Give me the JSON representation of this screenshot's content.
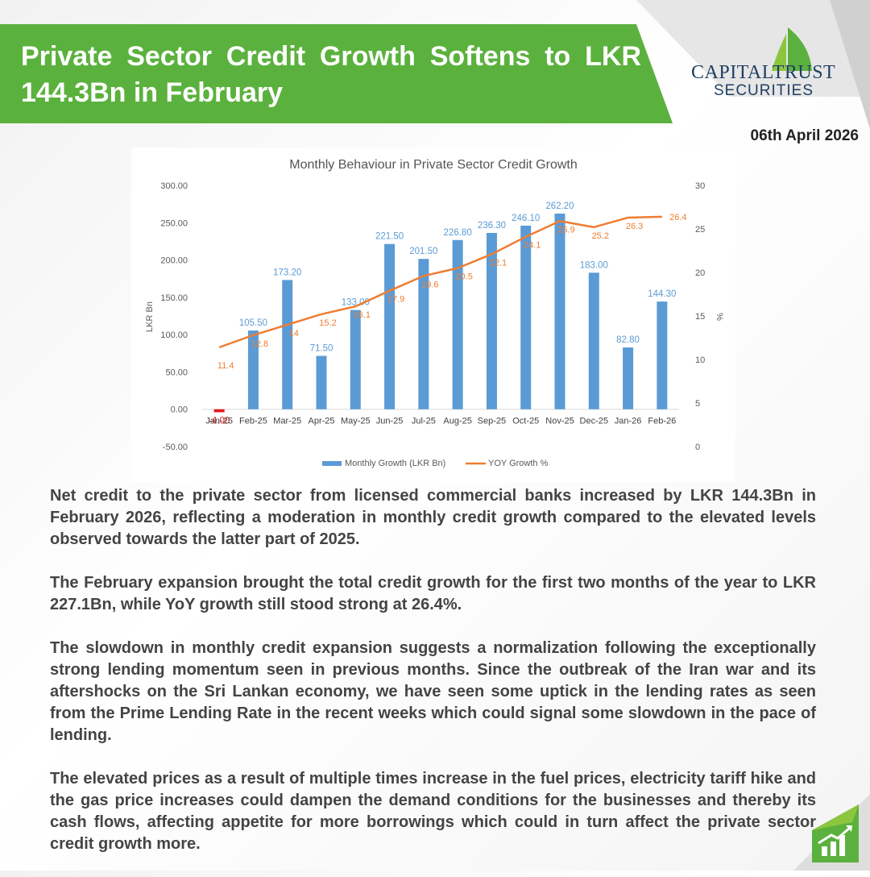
{
  "header": {
    "title": "Private Sector Credit Growth Softens to LKR 144.3Bn in February",
    "date": "06th April 2026"
  },
  "logo": {
    "name": "CAPITALTRUST",
    "sub": "SECURITIES"
  },
  "colors": {
    "brand_green": "#5bb13d",
    "bar": "#5b9bd5",
    "line": "#ed7d31",
    "negative_bar": "#e31b1b",
    "logo_navy": "#1f3f63"
  },
  "chart_data": {
    "type": "bar",
    "title": "Monthly Behaviour in Private Sector Credit Growth",
    "ylabel": "LKR Bn",
    "y2label": "%",
    "ylim": [
      -50,
      300
    ],
    "y2lim": [
      0,
      30
    ],
    "yticks": [
      "300.00",
      "250.00",
      "200.00",
      "150.00",
      "100.00",
      "50.00",
      "0.00",
      "-50.00"
    ],
    "y2ticks": [
      "30",
      "25",
      "20",
      "15",
      "10",
      "5",
      "0"
    ],
    "categories": [
      "Jan-25",
      "Feb-25",
      "Mar-25",
      "Apr-25",
      "May-25",
      "Jun-25",
      "Jul-25",
      "Aug-25",
      "Sep-25",
      "Oct-25",
      "Nov-25",
      "Dec-25",
      "Jan-26",
      "Feb-26"
    ],
    "grid": false,
    "legend_position": "bottom",
    "series": [
      {
        "name": "Monthly Growth (LKR Bn)",
        "type": "bar",
        "axis": "left",
        "values": [
          -4.0,
          105.5,
          173.2,
          71.5,
          133.0,
          221.5,
          201.5,
          226.8,
          236.3,
          246.1,
          262.2,
          183.0,
          82.8,
          144.3
        ],
        "labels": [
          "-4.00",
          "105.50",
          "173.20",
          "71.50",
          "133.00",
          "221.50",
          "201.50",
          "226.80",
          "236.30",
          "246.10",
          "262.20",
          "183.00",
          "82.80",
          "144.30"
        ]
      },
      {
        "name": "YOY Growth %",
        "type": "line",
        "axis": "right",
        "values": [
          11.4,
          12.8,
          14,
          15.2,
          16.1,
          17.9,
          19.6,
          20.5,
          22.1,
          24.1,
          25.9,
          25.2,
          26.3,
          26.4
        ],
        "labels": [
          "11.4",
          "12.8",
          "14",
          "15.2",
          "16.1",
          "17.9",
          "19.6",
          "20.5",
          "22.1",
          "24.1",
          "25.9",
          "25.2",
          "26.3",
          "26.4"
        ]
      }
    ]
  },
  "paragraphs": [
    "Net credit to the private sector from licensed commercial banks increased by LKR 144.3Bn in February 2026, reflecting a moderation in monthly credit growth compared to the elevated levels observed towards the latter part of 2025.",
    "The February expansion brought the total credit growth for the first two months of the year to LKR 227.1Bn, while YoY growth still stood strong at 26.4%.",
    "The slowdown in monthly credit expansion suggests a normalization following the exceptionally strong lending momentum seen in previous months. Since the outbreak of the Iran war and its aftershocks on the Sri Lankan economy, we have seen some uptick in the lending rates as seen from the Prime Lending Rate in the recent weeks which could signal some slowdown in the pace of lending.",
    "The elevated prices as a result of multiple times increase in the fuel prices, electricity tariff hike and the gas price increases could dampen the demand conditions for the businesses and thereby its cash flows, affecting appetite for more borrowings which could in turn affect the private sector credit growth more."
  ]
}
